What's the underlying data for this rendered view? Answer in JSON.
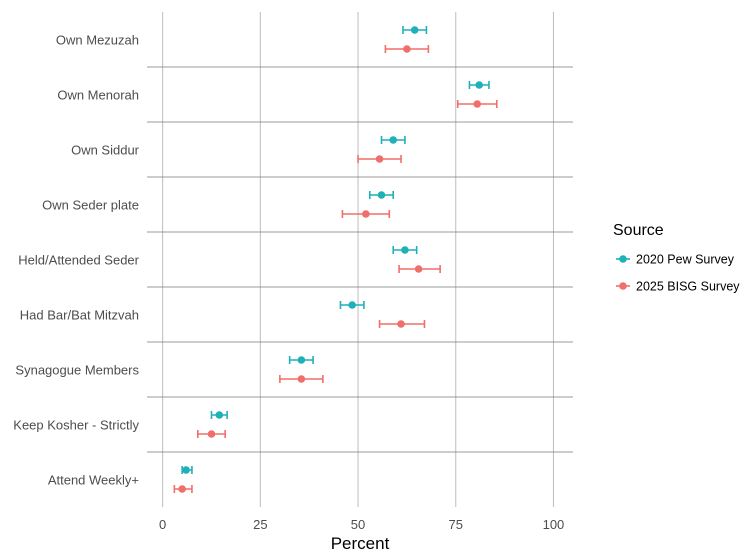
{
  "chart_data": {
    "type": "scatter",
    "subtype": "dot-with-error-bars",
    "xlabel": "Percent",
    "ylabel": "",
    "xlim": [
      -4,
      105
    ],
    "xticks": [
      0,
      25,
      50,
      75,
      100
    ],
    "grid": true,
    "legend": {
      "title": "Source",
      "placement": "right"
    },
    "categories": [
      "Own Mezuzah",
      "Own Menorah",
      "Own Siddur",
      "Own Seder plate",
      "Held/Attended Seder",
      "Had Bar/Bat Mitzvah",
      "Synagogue Members",
      "Keep Kosher - Strictly",
      "Attend Weekly+"
    ],
    "series": [
      {
        "name": "2020 Pew Survey",
        "color": "#1fb0b8",
        "values": [
          64.5,
          81,
          59,
          56,
          62,
          48.5,
          35.5,
          14.5,
          6
        ],
        "lower": [
          61.5,
          78.5,
          56,
          53,
          59,
          45.5,
          32.5,
          12.5,
          5
        ],
        "upper": [
          67.5,
          83.5,
          62,
          59,
          65,
          51.5,
          38.5,
          16.5,
          7.5
        ]
      },
      {
        "name": "2025 BISG Survey",
        "color": "#ef6f6a",
        "values": [
          62.5,
          80.5,
          55.5,
          52,
          65.5,
          61,
          35.5,
          12.5,
          5
        ],
        "lower": [
          57,
          75.5,
          50,
          46,
          60.5,
          55.5,
          30,
          9,
          3
        ],
        "upper": [
          68,
          85.5,
          61,
          58,
          71,
          67,
          41,
          16,
          7.5
        ]
      }
    ]
  }
}
